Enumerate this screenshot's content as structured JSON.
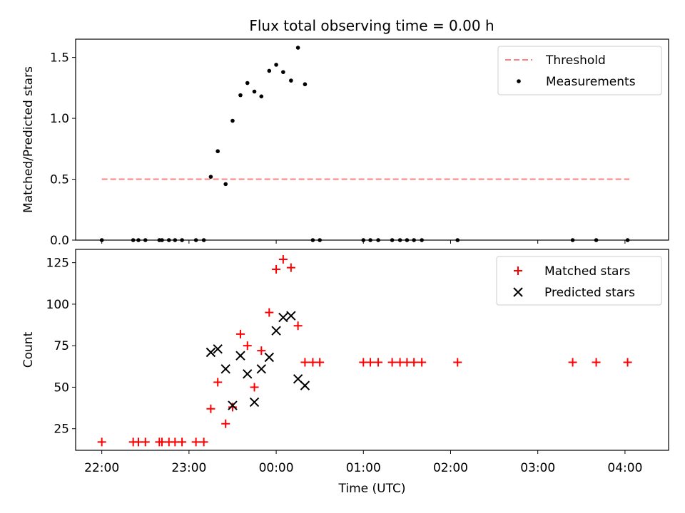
{
  "chart_data": [
    {
      "type": "line+scatter",
      "title": "Flux total observing time = 0.00 h",
      "xlabel": "",
      "ylabel": "Matched/Predicted stars",
      "xlim": [
        -0.3,
        6.5
      ],
      "ylim": [
        0,
        1.65
      ],
      "yticks": [
        0.0,
        0.5,
        1.0,
        1.5
      ],
      "ytick_labels": [
        "0.0",
        "0.5",
        "1.0",
        "1.5"
      ],
      "legend": {
        "position": "top-right",
        "entries": [
          "Threshold",
          "Measurements"
        ]
      },
      "threshold": {
        "name": "Threshold",
        "value": 0.5,
        "x_range": [
          0.0,
          6.05
        ],
        "color": "#ff8080"
      },
      "series": [
        {
          "name": "Measurements",
          "color": "#000000",
          "points": [
            [
              0.0,
              0.0
            ],
            [
              0.36,
              0.0
            ],
            [
              0.42,
              0.0
            ],
            [
              0.5,
              0.0
            ],
            [
              0.66,
              0.0
            ],
            [
              0.69,
              0.0
            ],
            [
              0.77,
              0.0
            ],
            [
              0.84,
              0.0
            ],
            [
              0.92,
              0.0
            ],
            [
              1.08,
              0.0
            ],
            [
              1.17,
              0.0
            ],
            [
              1.25,
              0.52
            ],
            [
              1.33,
              0.73
            ],
            [
              1.42,
              0.46
            ],
            [
              1.5,
              0.98
            ],
            [
              1.59,
              1.19
            ],
            [
              1.67,
              1.29
            ],
            [
              1.75,
              1.22
            ],
            [
              1.83,
              1.18
            ],
            [
              1.92,
              1.39
            ],
            [
              2.0,
              1.44
            ],
            [
              2.08,
              1.38
            ],
            [
              2.17,
              1.31
            ],
            [
              2.25,
              1.58
            ],
            [
              2.33,
              1.28
            ],
            [
              2.42,
              0.0
            ],
            [
              2.5,
              0.0
            ],
            [
              3.0,
              0.0
            ],
            [
              3.08,
              0.0
            ],
            [
              3.17,
              0.0
            ],
            [
              3.33,
              0.0
            ],
            [
              3.42,
              0.0
            ],
            [
              3.5,
              0.0
            ],
            [
              3.58,
              0.0
            ],
            [
              3.67,
              0.0
            ],
            [
              4.08,
              0.0
            ],
            [
              5.4,
              0.0
            ],
            [
              5.67,
              0.0
            ],
            [
              6.03,
              0.0
            ]
          ]
        }
      ]
    },
    {
      "type": "scatter",
      "title": "",
      "xlabel": "Time (UTC)",
      "ylabel": "Count",
      "xlim": [
        -0.3,
        6.5
      ],
      "ylim": [
        12,
        133
      ],
      "yticks": [
        25,
        50,
        75,
        100,
        125
      ],
      "ytick_labels": [
        "25",
        "50",
        "75",
        "100",
        "125"
      ],
      "xticks": [
        0,
        1,
        2,
        3,
        4,
        5,
        6
      ],
      "xtick_labels": [
        "22:00",
        "23:00",
        "00:00",
        "01:00",
        "02:00",
        "03:00",
        "04:00"
      ],
      "legend": {
        "position": "top-right",
        "entries": [
          "Matched stars",
          "Predicted stars"
        ]
      },
      "series": [
        {
          "name": "Matched stars",
          "marker": "plus",
          "color": "#ff0000",
          "points": [
            [
              0.0,
              17
            ],
            [
              0.36,
              17
            ],
            [
              0.42,
              17
            ],
            [
              0.5,
              17
            ],
            [
              0.66,
              17
            ],
            [
              0.69,
              17
            ],
            [
              0.77,
              17
            ],
            [
              0.84,
              17
            ],
            [
              0.92,
              17
            ],
            [
              1.08,
              17
            ],
            [
              1.17,
              17
            ],
            [
              1.25,
              37
            ],
            [
              1.33,
              53
            ],
            [
              1.42,
              28
            ],
            [
              1.5,
              38
            ],
            [
              1.59,
              82
            ],
            [
              1.67,
              75
            ],
            [
              1.75,
              50
            ],
            [
              1.83,
              72
            ],
            [
              1.92,
              95
            ],
            [
              2.0,
              121
            ],
            [
              2.08,
              127
            ],
            [
              2.17,
              122
            ],
            [
              2.25,
              87
            ],
            [
              2.33,
              65
            ],
            [
              2.42,
              65
            ],
            [
              2.5,
              65
            ],
            [
              3.0,
              65
            ],
            [
              3.08,
              65
            ],
            [
              3.17,
              65
            ],
            [
              3.33,
              65
            ],
            [
              3.42,
              65
            ],
            [
              3.5,
              65
            ],
            [
              3.58,
              65
            ],
            [
              3.67,
              65
            ],
            [
              4.08,
              65
            ],
            [
              5.4,
              65
            ],
            [
              5.67,
              65
            ],
            [
              6.03,
              65
            ]
          ]
        },
        {
          "name": "Predicted stars",
          "marker": "x",
          "color": "#000000",
          "points": [
            [
              1.25,
              71
            ],
            [
              1.33,
              73
            ],
            [
              1.42,
              61
            ],
            [
              1.5,
              39
            ],
            [
              1.59,
              69
            ],
            [
              1.67,
              58
            ],
            [
              1.75,
              41
            ],
            [
              1.83,
              61
            ],
            [
              1.92,
              68
            ],
            [
              2.0,
              84
            ],
            [
              2.08,
              92
            ],
            [
              2.17,
              93
            ],
            [
              2.25,
              55
            ],
            [
              2.33,
              51
            ]
          ]
        }
      ]
    }
  ]
}
